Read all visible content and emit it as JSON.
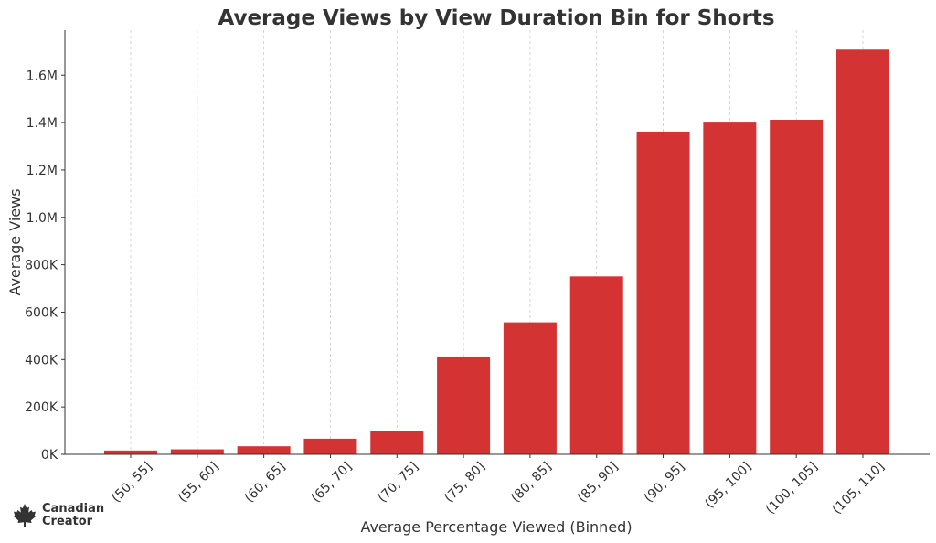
{
  "brand": {
    "line1": "Canadian",
    "line2": "Creator"
  },
  "colors": {
    "bar": "#d33333",
    "text": "#333333",
    "grid": "#c8c8c8"
  },
  "chart_data": {
    "type": "bar",
    "title": "Average Views by View Duration Bin for Shorts",
    "xlabel": "Average Percentage Viewed (Binned)",
    "ylabel": "Average Views",
    "categories": [
      "(50, 55]",
      "(55, 60]",
      "(60, 65]",
      "(65, 70]",
      "(70, 75]",
      "(75, 80]",
      "(80, 85]",
      "(85, 90]",
      "(90, 95]",
      "(95, 100]",
      "(100, 105]",
      "(105, 110]"
    ],
    "values": [
      16000,
      21000,
      34000,
      66000,
      98000,
      413000,
      557000,
      751000,
      1362000,
      1400000,
      1412000,
      1708000
    ],
    "ylim": [
      0,
      1790000
    ],
    "yticks": [
      0,
      200000,
      400000,
      600000,
      800000,
      1000000,
      1200000,
      1400000,
      1600000
    ],
    "ytick_labels": [
      "0K",
      "200K",
      "400K",
      "600K",
      "800K",
      "1.0M",
      "1.2M",
      "1.4M",
      "1.6M"
    ],
    "grid": "vertical dashed",
    "legend": "none"
  }
}
